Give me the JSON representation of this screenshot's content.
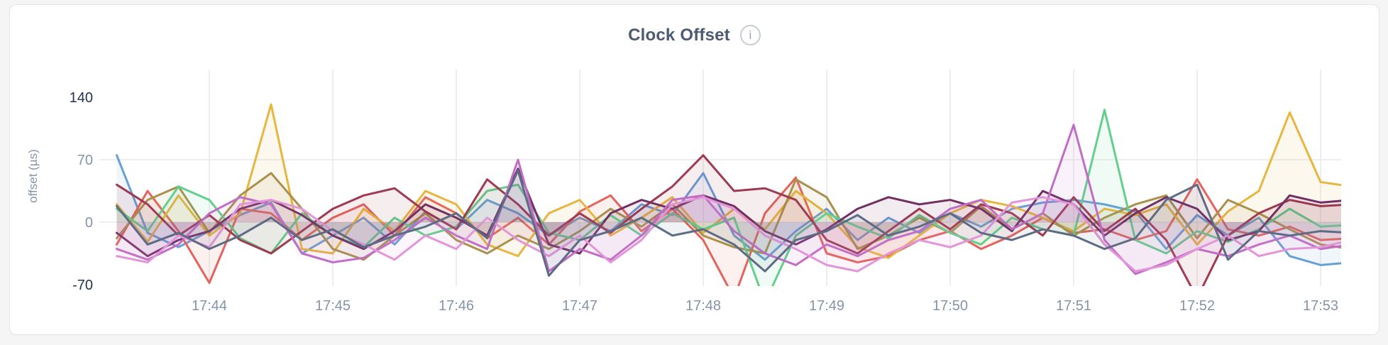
{
  "header": {
    "title": "Clock Offset",
    "info_glyph": "i"
  },
  "colors": {
    "page_bg": "#f5f5f6",
    "card_bg": "#ffffff",
    "card_border": "#e4e4e6",
    "title": "#4c5a74",
    "info_icon": "#9aa2ab",
    "gridline": "#e9e9eb",
    "tick_label": "#8494a8",
    "tick_label_emphasis": "#24334e"
  },
  "chart_data": {
    "type": "line",
    "title": "Clock Offset",
    "xlabel": "",
    "ylabel": "offset (µs)",
    "ylim": [
      -70,
      140
    ],
    "grid": true,
    "legend": false,
    "x_ticks": [
      {
        "label": "17:44",
        "min": 0
      },
      {
        "label": "17:45",
        "min": 1
      },
      {
        "label": "17:46",
        "min": 2
      },
      {
        "label": "17:47",
        "min": 3
      },
      {
        "label": "17:48",
        "min": 4
      },
      {
        "label": "17:49",
        "min": 5
      },
      {
        "label": "17:50",
        "min": 6
      },
      {
        "label": "17:51",
        "min": 7
      },
      {
        "label": "17:52",
        "min": 8
      },
      {
        "label": "17:53",
        "min": 9
      }
    ],
    "y_ticks": [
      {
        "label": "140",
        "value": 140,
        "emphasis": true,
        "gridline": false
      },
      {
        "label": "70",
        "value": 70,
        "emphasis": false,
        "gridline": true
      },
      {
        "label": "0",
        "value": 0,
        "emphasis": false,
        "gridline": true
      },
      {
        "label": "-70",
        "value": -70,
        "emphasis": true,
        "gridline": false
      }
    ],
    "x_start_offset_min": -0.75,
    "x_step_min": 0.25,
    "fill_opacity": 0.09,
    "series": [
      {
        "name": "blue",
        "color": "#689fd6",
        "values": [
          75,
          -12,
          -28,
          -10,
          8,
          22,
          -35,
          -15,
          5,
          -25,
          12,
          -8,
          25,
          10,
          -15,
          5,
          -10,
          20,
          8,
          55,
          -15,
          -42,
          -10,
          15,
          -20,
          5,
          -12,
          10,
          -5,
          15,
          22,
          25,
          20,
          12,
          -30,
          8,
          -15,
          5,
          -38,
          -48,
          -45
        ]
      },
      {
        "name": "coral",
        "color": "#e4635c",
        "values": [
          -25,
          35,
          -10,
          -68,
          15,
          10,
          -20,
          5,
          20,
          -15,
          28,
          10,
          -18,
          5,
          -25,
          12,
          30,
          -10,
          15,
          -20,
          -85,
          10,
          50,
          -35,
          -45,
          -38,
          -20,
          -10,
          -30,
          -15,
          5,
          -12,
          -8,
          -20,
          -10,
          48,
          -8,
          -15,
          -5,
          -20,
          -18
        ]
      },
      {
        "name": "gold",
        "color": "#e7b63e",
        "values": [
          20,
          -22,
          30,
          -15,
          10,
          132,
          -30,
          -35,
          15,
          -10,
          35,
          20,
          -25,
          -38,
          10,
          25,
          -15,
          5,
          28,
          -12,
          15,
          -8,
          35,
          10,
          -28,
          -40,
          -15,
          10,
          25,
          18,
          5,
          -10,
          15,
          8,
          20,
          -25,
          12,
          35,
          123,
          45,
          40
        ]
      },
      {
        "name": "olive",
        "color": "#a9914d",
        "values": [
          -18,
          25,
          40,
          -12,
          30,
          55,
          15,
          -30,
          -42,
          -15,
          10,
          -20,
          -35,
          -15,
          -30,
          -10,
          15,
          -5,
          20,
          -15,
          -28,
          -35,
          48,
          28,
          -30,
          -15,
          5,
          -12,
          18,
          -8,
          10,
          -15,
          5,
          20,
          30,
          -18,
          25,
          10,
          -8,
          -25,
          -30
        ]
      },
      {
        "name": "mint",
        "color": "#63cf8d",
        "values": [
          15,
          -10,
          40,
          25,
          -18,
          -35,
          10,
          -15,
          -28,
          5,
          -15,
          -5,
          35,
          42,
          -12,
          -20,
          8,
          -15,
          10,
          -8,
          5,
          -90,
          -15,
          10,
          -5,
          -18,
          8,
          -12,
          -25,
          5,
          -8,
          -15,
          126,
          -20,
          -35,
          -10,
          -22,
          -8,
          15,
          -5,
          -3
        ]
      },
      {
        "name": "wine",
        "color": "#9e3a52",
        "values": [
          42,
          20,
          -15,
          8,
          -20,
          -35,
          -10,
          15,
          30,
          38,
          12,
          -8,
          48,
          20,
          -15,
          10,
          -12,
          15,
          40,
          75,
          35,
          38,
          25,
          -20,
          -35,
          -10,
          15,
          -8,
          20,
          10,
          -15,
          28,
          -10,
          15,
          -20,
          -85,
          -15,
          10,
          25,
          18,
          20
        ]
      },
      {
        "name": "plum",
        "color": "#722f63",
        "values": [
          -12,
          -38,
          -20,
          -10,
          15,
          25,
          8,
          -15,
          -30,
          -10,
          20,
          5,
          -15,
          60,
          -25,
          -35,
          10,
          25,
          15,
          30,
          18,
          -10,
          -25,
          -8,
          15,
          28,
          20,
          25,
          15,
          -10,
          35,
          20,
          -15,
          10,
          28,
          15,
          -20,
          -10,
          30,
          22,
          25
        ]
      },
      {
        "name": "orchid",
        "color": "#c16dc6",
        "values": [
          -30,
          -42,
          -25,
          10,
          28,
          20,
          -35,
          -45,
          -40,
          -20,
          5,
          -15,
          -30,
          70,
          -55,
          -30,
          -42,
          -15,
          25,
          30,
          -10,
          -35,
          -48,
          -25,
          -38,
          -20,
          -10,
          15,
          25,
          -8,
          10,
          109,
          -20,
          -58,
          -45,
          -30,
          -38,
          -25,
          -15,
          -30,
          -25
        ]
      },
      {
        "name": "pink",
        "color": "#e295d8",
        "values": [
          -38,
          -45,
          -15,
          -28,
          20,
          25,
          15,
          -10,
          -25,
          -42,
          -15,
          -30,
          5,
          -20,
          -38,
          -15,
          -45,
          -20,
          20,
          28,
          15,
          -15,
          -30,
          -48,
          -55,
          -35,
          -20,
          -28,
          -15,
          22,
          28,
          20,
          -25,
          -55,
          -48,
          -30,
          -15,
          -38,
          -30,
          -28,
          -20
        ]
      },
      {
        "name": "slate",
        "color": "#5d6b84",
        "values": [
          18,
          -25,
          -12,
          -30,
          -15,
          5,
          -20,
          -8,
          -28,
          -15,
          -5,
          10,
          -18,
          58,
          -60,
          -20,
          -10,
          5,
          -15,
          -8,
          -25,
          -55,
          -20,
          -10,
          8,
          -15,
          -5,
          10,
          -12,
          -20,
          -8,
          -15,
          -30,
          -18,
          25,
          42,
          -42,
          -10,
          -15,
          -10,
          -12
        ]
      }
    ]
  }
}
